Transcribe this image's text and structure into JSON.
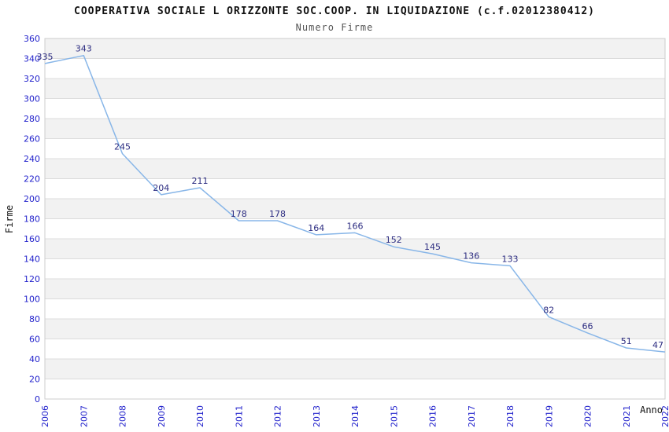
{
  "chart_data": {
    "type": "line",
    "title": "COOPERATIVA SOCIALE L ORIZZONTE SOC.COOP. IN LIQUIDAZIONE (c.f.02012380412)",
    "subtitle": "Numero Firme",
    "xlabel": "Anno",
    "ylabel": "Firme",
    "categories": [
      "2006",
      "2007",
      "2008",
      "2009",
      "2010",
      "2011",
      "2012",
      "2013",
      "2014",
      "2015",
      "2016",
      "2017",
      "2018",
      "2019",
      "2020",
      "2021",
      "2022"
    ],
    "values": [
      335,
      343,
      245,
      204,
      211,
      178,
      178,
      164,
      166,
      152,
      145,
      136,
      133,
      82,
      66,
      51,
      47
    ],
    "ylim": [
      0,
      360
    ],
    "ytick_step": 20,
    "grid": true,
    "legend": "none",
    "point_markers": false,
    "colors": {
      "line": "#88b6e8",
      "data_label": "#2b2b80",
      "tick_label": "#2323cc",
      "grid_line": "#dcdcdc",
      "band_fill": "#f2f2f2",
      "plot_border": "#cccccc",
      "title": "#111111",
      "subtitle": "#555555",
      "axis_title": "#111111"
    }
  }
}
